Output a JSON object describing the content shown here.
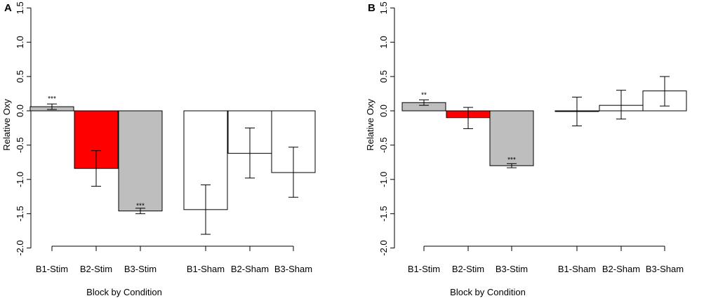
{
  "colors": {
    "red": "#ff0000",
    "gray": "#bebebe",
    "white": "#ffffff",
    "axis": "#000000"
  },
  "chart_data": [
    {
      "panel_label": "A",
      "type": "bar",
      "ylabel": "Relative Oxy",
      "xlabel": "Block by Condition",
      "ylim": [
        -2.0,
        1.5
      ],
      "yticks": [
        "-2.0",
        "-1.5",
        "-1.0",
        "-0.5",
        "0.0",
        "0.5",
        "1.0",
        "1.5"
      ],
      "grid": false,
      "categories": [
        "B1-Stim",
        "B2-Stim",
        "B3-Stim",
        "B1-Sham",
        "B2-Sham",
        "B3-Sham"
      ],
      "values": [
        0.06,
        -0.84,
        -1.46,
        -1.44,
        -0.62,
        -0.9
      ],
      "error_low": [
        0.02,
        -1.1,
        -1.5,
        -1.8,
        -0.98,
        -1.26
      ],
      "error_high": [
        0.1,
        -0.58,
        -1.42,
        -1.08,
        -0.25,
        -0.53
      ],
      "fill": [
        "gray",
        "red",
        "gray",
        "white",
        "white",
        "white"
      ],
      "annotations": [
        {
          "category": "B1-Stim",
          "text": "***",
          "position": "above"
        },
        {
          "category": "B3-Stim",
          "text": "***",
          "position": "below"
        }
      ]
    },
    {
      "panel_label": "B",
      "type": "bar",
      "ylabel": "Relative Oxy",
      "xlabel": "Block by Condition",
      "ylim": [
        -2.0,
        1.5
      ],
      "yticks": [
        "-2.0",
        "-1.5",
        "-1.0",
        "-0.5",
        "0.0",
        "0.5",
        "1.0",
        "1.5"
      ],
      "grid": false,
      "categories": [
        "B1-Stim",
        "B2-Stim",
        "B3-Stim",
        "B1-Sham",
        "B2-Sham",
        "B3-Sham"
      ],
      "values": [
        0.12,
        -0.1,
        -0.8,
        -0.01,
        0.08,
        0.29
      ],
      "error_low": [
        0.08,
        -0.26,
        -0.83,
        -0.22,
        -0.12,
        0.07
      ],
      "error_high": [
        0.16,
        0.05,
        -0.77,
        0.2,
        0.3,
        0.5
      ],
      "fill": [
        "gray",
        "red",
        "gray",
        "white",
        "white",
        "white"
      ],
      "annotations": [
        {
          "category": "B1-Stim",
          "text": "**",
          "position": "above"
        },
        {
          "category": "B3-Stim",
          "text": "***",
          "position": "below"
        }
      ]
    }
  ]
}
